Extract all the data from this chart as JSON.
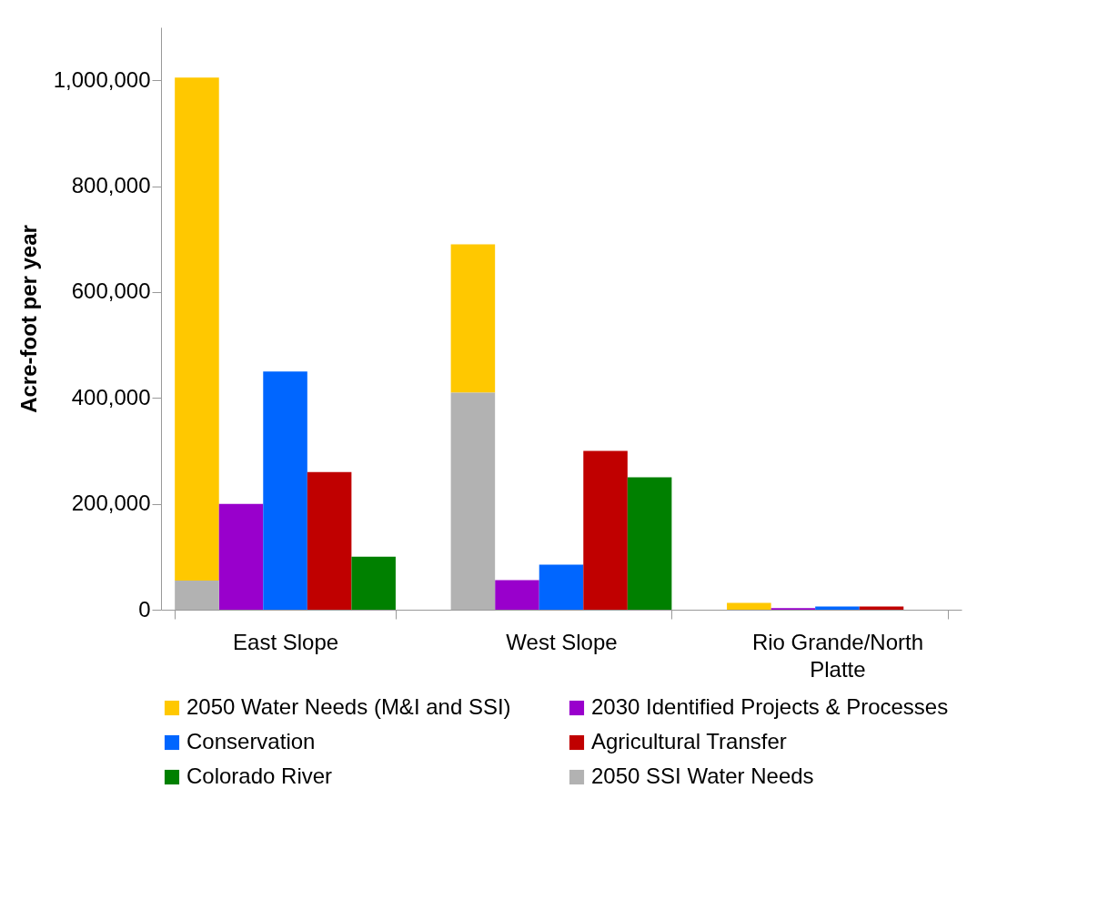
{
  "chart_data": {
    "type": "bar",
    "ylabel": "Acre-foot per year",
    "categories": [
      "East Slope",
      "West Slope",
      "Rio Grande/North Platte"
    ],
    "series": [
      {
        "name": "2050 Water Needs (M&I and SSI)",
        "color": "#ffc800",
        "values": [
          950000,
          280000,
          13000
        ],
        "base": [
          55000,
          410000,
          0
        ]
      },
      {
        "name": "2030 Identified Projects & Processes",
        "color": "#9900cc",
        "values": [
          200000,
          56000,
          3000
        ]
      },
      {
        "name": "Conservation",
        "color": "#0066ff",
        "values": [
          450000,
          85000,
          6000
        ]
      },
      {
        "name": "Agricultural Transfer",
        "color": "#c00000",
        "values": [
          260000,
          300000,
          6000
        ]
      },
      {
        "name": "Colorado River",
        "color": "#008000",
        "values": [
          100000,
          250000,
          0
        ]
      },
      {
        "name": "2050 SSI Water Needs",
        "color": "#b2b2b2",
        "values": [
          55000,
          410000,
          0
        ]
      }
    ],
    "ylim": [
      0,
      1100000
    ],
    "yticks": [
      0,
      {
        "value": 200000,
        "label": "200,000"
      },
      {
        "value": 400000,
        "label": "400,000"
      },
      {
        "value": 600000,
        "label": "600,000"
      },
      {
        "value": 800000,
        "label": "800,000"
      },
      {
        "value": 1000000,
        "label": "1,000,000"
      }
    ],
    "grid": false,
    "legend": "bottom"
  }
}
